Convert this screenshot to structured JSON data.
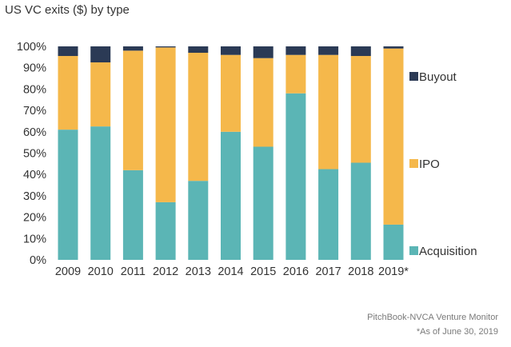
{
  "header": {
    "title": "US VC exits ($) by type"
  },
  "footer": {
    "source": "PitchBook-NVCA Venture Monitor",
    "note": "*As of June 30, 2019"
  },
  "chart_data": {
    "type": "bar",
    "stacked": true,
    "title": "US VC exits ($) by type",
    "categories": [
      "2009",
      "2010",
      "2011",
      "2012",
      "2013",
      "2014",
      "2015",
      "2016",
      "2017",
      "2018",
      "2019*"
    ],
    "series": [
      {
        "name": "Acquisition",
        "color": "#5bb5b5",
        "values": [
          61,
          62.5,
          42,
          27,
          37,
          60,
          53,
          78,
          42.5,
          45.5,
          16.5
        ]
      },
      {
        "name": "IPO",
        "color": "#f5b84b",
        "values": [
          34.5,
          30,
          56,
          72.5,
          60,
          36,
          41.5,
          18,
          53.5,
          50,
          82.5
        ]
      },
      {
        "name": "Buyout",
        "color": "#2b3a55",
        "values": [
          4.5,
          7.5,
          2,
          0.5,
          3,
          4,
          5.5,
          4,
          4,
          4.5,
          1
        ]
      }
    ],
    "legend_order": [
      "Buyout",
      "IPO",
      "Acquisition"
    ],
    "y_ticks": [
      "0%",
      "10%",
      "20%",
      "30%",
      "40%",
      "50%",
      "60%",
      "70%",
      "80%",
      "90%",
      "100%"
    ],
    "ylim": [
      0,
      100
    ],
    "y_unit": "%",
    "grid": false,
    "legend_position": "right"
  }
}
